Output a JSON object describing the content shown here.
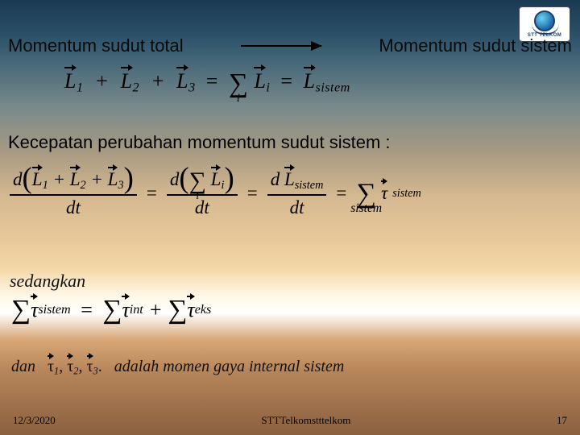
{
  "logo": {
    "label": "STT TELKOM"
  },
  "heading": {
    "left": "Momentum sudut total",
    "right": "Momentum sudut sistem"
  },
  "equation1": {
    "L1": "L",
    "sub1": "1",
    "L2": "L",
    "sub2": "2",
    "L3": "L",
    "sub3": "3",
    "Li": "L",
    "subi": "i",
    "Ls": "L",
    "subs": "sistem",
    "sumIndex": "i",
    "eq": "="
  },
  "subheading": "Kecepatan perubahan momentum sudut sistem :",
  "equation2": {
    "d": "d",
    "dt": "dt",
    "L1": "L",
    "sub1": "1",
    "L2": "L",
    "sub2": "2",
    "L3": "L",
    "sub3": "3",
    "Li": "L",
    "subi": "i",
    "Ls": "L",
    "subs": "sistem",
    "tau": "τ",
    "tauSub": "sistem",
    "sumIndex": "i",
    "sumIndex2": "sistem",
    "eq": "="
  },
  "sedangkan": "sedangkan",
  "equation3": {
    "tau": "τ",
    "subSistem": "sistem",
    "subInt": "int",
    "subEks": "eks",
    "eq": "=",
    "plus": "+"
  },
  "finalLine": {
    "dan": "dan",
    "tau": "τ",
    "s1": "1",
    "s2": "2",
    "s3": "3",
    "comma": ",",
    "rest": "adalah momen gaya internal sistem"
  },
  "footer": {
    "date": "12/3/2020",
    "center": "STTTelkomstttelkom",
    "page": "17"
  },
  "colors": {
    "text": "#000000"
  }
}
